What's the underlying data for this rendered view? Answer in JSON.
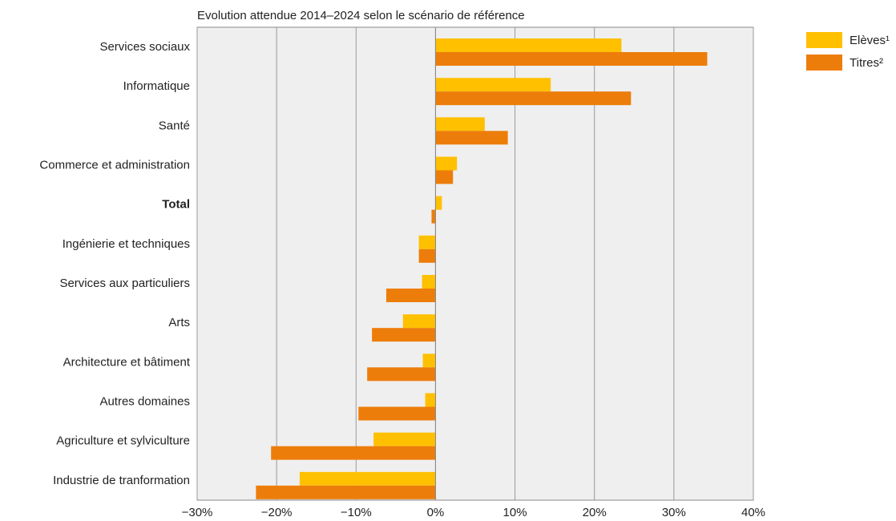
{
  "chart_data": {
    "type": "hbar",
    "title": "Evolution attendue 2014–2024 selon le scénario de référence",
    "categories": [
      "Services sociaux",
      "Informatique",
      "Santé",
      "Commerce et administration",
      "Total",
      "Ingénierie et techniques",
      "Services aux particuliers",
      "Arts",
      "Architecture et bâtiment",
      "Autres domaines",
      "Agriculture et sylviculture",
      "Industrie de tranformation"
    ],
    "series": [
      {
        "name": "Elèves¹",
        "color": "#ffc000",
        "values": [
          23.4,
          14.5,
          6.2,
          2.7,
          0.8,
          -2.1,
          -1.7,
          -4.1,
          -1.6,
          -1.3,
          -7.8,
          -17.1
        ]
      },
      {
        "name": "Titres²",
        "color": "#ed7d0a",
        "values": [
          34.2,
          24.6,
          9.1,
          2.2,
          -0.5,
          -2.1,
          -6.2,
          -8.0,
          -8.6,
          -9.7,
          -20.7,
          -22.6
        ]
      }
    ],
    "xlim": [
      -30,
      40
    ],
    "xticks": [
      {
        "value": -30,
        "label": "−30%"
      },
      {
        "value": -20,
        "label": "−20%"
      },
      {
        "value": -10,
        "label": "−10%"
      },
      {
        "value": 0,
        "label": "0%"
      },
      {
        "value": 10,
        "label": "10%"
      },
      {
        "value": 20,
        "label": "20%"
      },
      {
        "value": 30,
        "label": "30%"
      },
      {
        "value": 40,
        "label": "40%"
      }
    ],
    "grid": true,
    "legend": "right"
  }
}
